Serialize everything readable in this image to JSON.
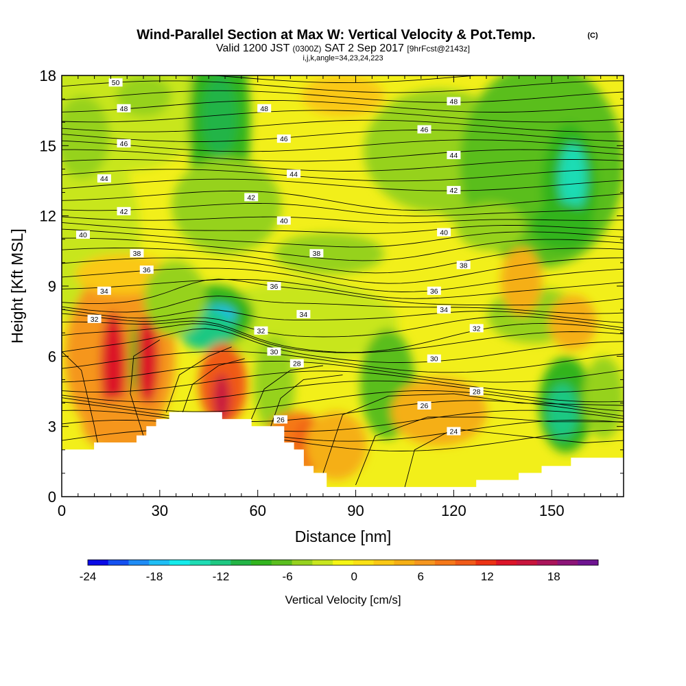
{
  "title": {
    "main": "Wind-Parallel Section at Max W: Vertical Velocity & Pot.Temp.",
    "main_tag": "(C)",
    "valid_prefix": "Valid 1200 JST",
    "valid_utc": "(0300Z)",
    "valid_date": "SAT 2 Sep 2017",
    "forecast": "[9hrFcst@2143z]",
    "params": "i,j,k,angle=34,23,24,223"
  },
  "chart_data": {
    "type": "heatmap",
    "xlabel": "Distance [nm]",
    "ylabel": "Height [Kft MSL]",
    "xlim": [
      0,
      172
    ],
    "ylim": [
      0,
      18
    ],
    "x_ticks": [
      0,
      30,
      60,
      90,
      120,
      150
    ],
    "y_ticks": [
      0,
      3,
      6,
      9,
      12,
      15,
      18
    ],
    "colorbar": {
      "label": "Vertical Velocity [cm/s]",
      "ticks": [
        -24,
        -18,
        -12,
        -6,
        0,
        6,
        12,
        18
      ],
      "range": [
        -24,
        22
      ],
      "colors": [
        "#0a0ae6",
        "#1450f0",
        "#1e8cf5",
        "#1ebef5",
        "#14ebeb",
        "#1edcb4",
        "#1ec882",
        "#23b446",
        "#32b41e",
        "#5abe1e",
        "#96d21e",
        "#c8e61e",
        "#f5f514",
        "#fae114",
        "#fac814",
        "#f5af14",
        "#f5961e",
        "#f57819",
        "#f05a19",
        "#eb3214",
        "#dc1428",
        "#c8143c",
        "#aa145a",
        "#8c1478",
        "#6e1490"
      ]
    },
    "theta_contours_C": [
      24,
      26,
      28,
      30,
      32,
      34,
      36,
      38,
      40,
      42,
      44,
      46,
      48,
      50
    ],
    "contour_labels": [
      {
        "value": 50,
        "x": 16.5,
        "y": 17.7
      },
      {
        "value": 48,
        "x": 19,
        "y": 16.6
      },
      {
        "value": 48,
        "x": 62,
        "y": 16.6
      },
      {
        "value": 48,
        "x": 120,
        "y": 16.9
      },
      {
        "value": 46,
        "x": 19,
        "y": 15.1
      },
      {
        "value": 46,
        "x": 68,
        "y": 15.3
      },
      {
        "value": 46,
        "x": 111,
        "y": 15.7
      },
      {
        "value": 44,
        "x": 13,
        "y": 13.6
      },
      {
        "value": 44,
        "x": 71,
        "y": 13.8
      },
      {
        "value": 44,
        "x": 120,
        "y": 14.6
      },
      {
        "value": 42,
        "x": 19,
        "y": 12.2
      },
      {
        "value": 42,
        "x": 58,
        "y": 12.8
      },
      {
        "value": 42,
        "x": 120,
        "y": 13.1
      },
      {
        "value": 40,
        "x": 6.5,
        "y": 11.2
      },
      {
        "value": 40,
        "x": 68,
        "y": 11.8
      },
      {
        "value": 40,
        "x": 117,
        "y": 11.3
      },
      {
        "value": 38,
        "x": 23,
        "y": 10.4
      },
      {
        "value": 38,
        "x": 78,
        "y": 10.4
      },
      {
        "value": 38,
        "x": 123,
        "y": 9.9
      },
      {
        "value": 36,
        "x": 26,
        "y": 9.7
      },
      {
        "value": 36,
        "x": 65,
        "y": 9.0
      },
      {
        "value": 36,
        "x": 114,
        "y": 8.8
      },
      {
        "value": 34,
        "x": 13,
        "y": 8.8
      },
      {
        "value": 34,
        "x": 74,
        "y": 7.8
      },
      {
        "value": 34,
        "x": 117,
        "y": 8.0
      },
      {
        "value": 32,
        "x": 10,
        "y": 7.6
      },
      {
        "value": 32,
        "x": 61,
        "y": 7.1
      },
      {
        "value": 32,
        "x": 127,
        "y": 7.2
      },
      {
        "value": 30,
        "x": 65,
        "y": 6.2
      },
      {
        "value": 30,
        "x": 114,
        "y": 5.9
      },
      {
        "value": 28,
        "x": 72,
        "y": 5.7
      },
      {
        "value": 28,
        "x": 127,
        "y": 4.5
      },
      {
        "value": 26,
        "x": 67,
        "y": 3.3
      },
      {
        "value": 26,
        "x": 111,
        "y": 3.9
      },
      {
        "value": 24,
        "x": 120,
        "y": 2.8
      }
    ]
  }
}
